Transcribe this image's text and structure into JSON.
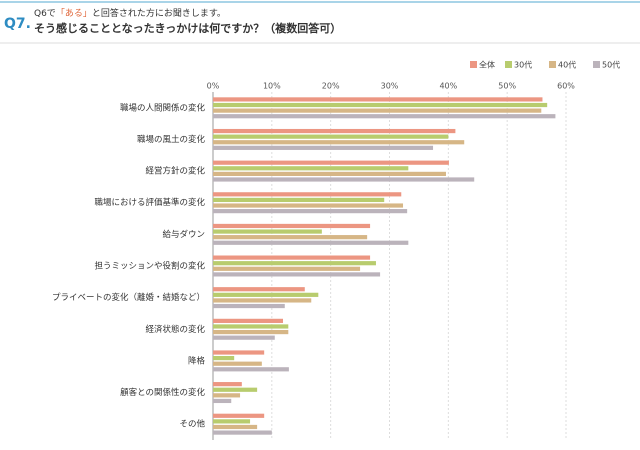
{
  "header": {
    "q_number": "Q7.",
    "lead": [
      "Q6で",
      "「ある」",
      "と回答された方にお聞きします。"
    ],
    "question": "そう感じることとなったきっかけは何ですか？（複数回答可）"
  },
  "chart_data": {
    "type": "hbar",
    "categories": [
      "職場の人間関係の変化",
      "職場の風土の変化",
      "経営方針の変化",
      "職場における評価基準の変化",
      "給与ダウン",
      "担うミッションや役割の変化",
      "プライベートの変化（離婚・結婚など）",
      "経済状態の変化",
      "降格",
      "顧客との関係性の変化",
      "その他"
    ],
    "series": [
      {
        "name": "全体",
        "color": "#ec9682",
        "values": [
          56.0,
          41.2,
          40.1,
          32.0,
          26.7,
          26.7,
          15.6,
          11.9,
          8.7,
          4.9,
          8.7
        ]
      },
      {
        "name": "30代",
        "color": "#b8cc6e",
        "values": [
          56.8,
          40.0,
          33.2,
          29.1,
          18.5,
          27.7,
          17.9,
          12.8,
          3.6,
          7.5,
          6.3
        ]
      },
      {
        "name": "40代",
        "color": "#d6b686",
        "values": [
          55.8,
          42.7,
          39.6,
          32.3,
          26.2,
          25.0,
          16.7,
          12.8,
          8.3,
          4.6,
          7.5
        ]
      },
      {
        "name": "50代",
        "color": "#bbb3bb",
        "values": [
          58.2,
          37.4,
          44.4,
          33.0,
          33.2,
          28.4,
          12.2,
          10.5,
          12.9,
          3.1,
          10.0
        ]
      }
    ],
    "xlim": [
      0,
      60
    ],
    "xticks": [
      {
        "value": 0,
        "label": "0%"
      },
      {
        "value": 10,
        "label": "10%"
      },
      {
        "value": 20,
        "label": "20%"
      },
      {
        "value": 30,
        "label": "30%"
      },
      {
        "value": 40,
        "label": "40%"
      },
      {
        "value": 50,
        "label": "50%"
      },
      {
        "value": 60,
        "label": "60%"
      }
    ],
    "grid": true,
    "legend": "top-right"
  }
}
